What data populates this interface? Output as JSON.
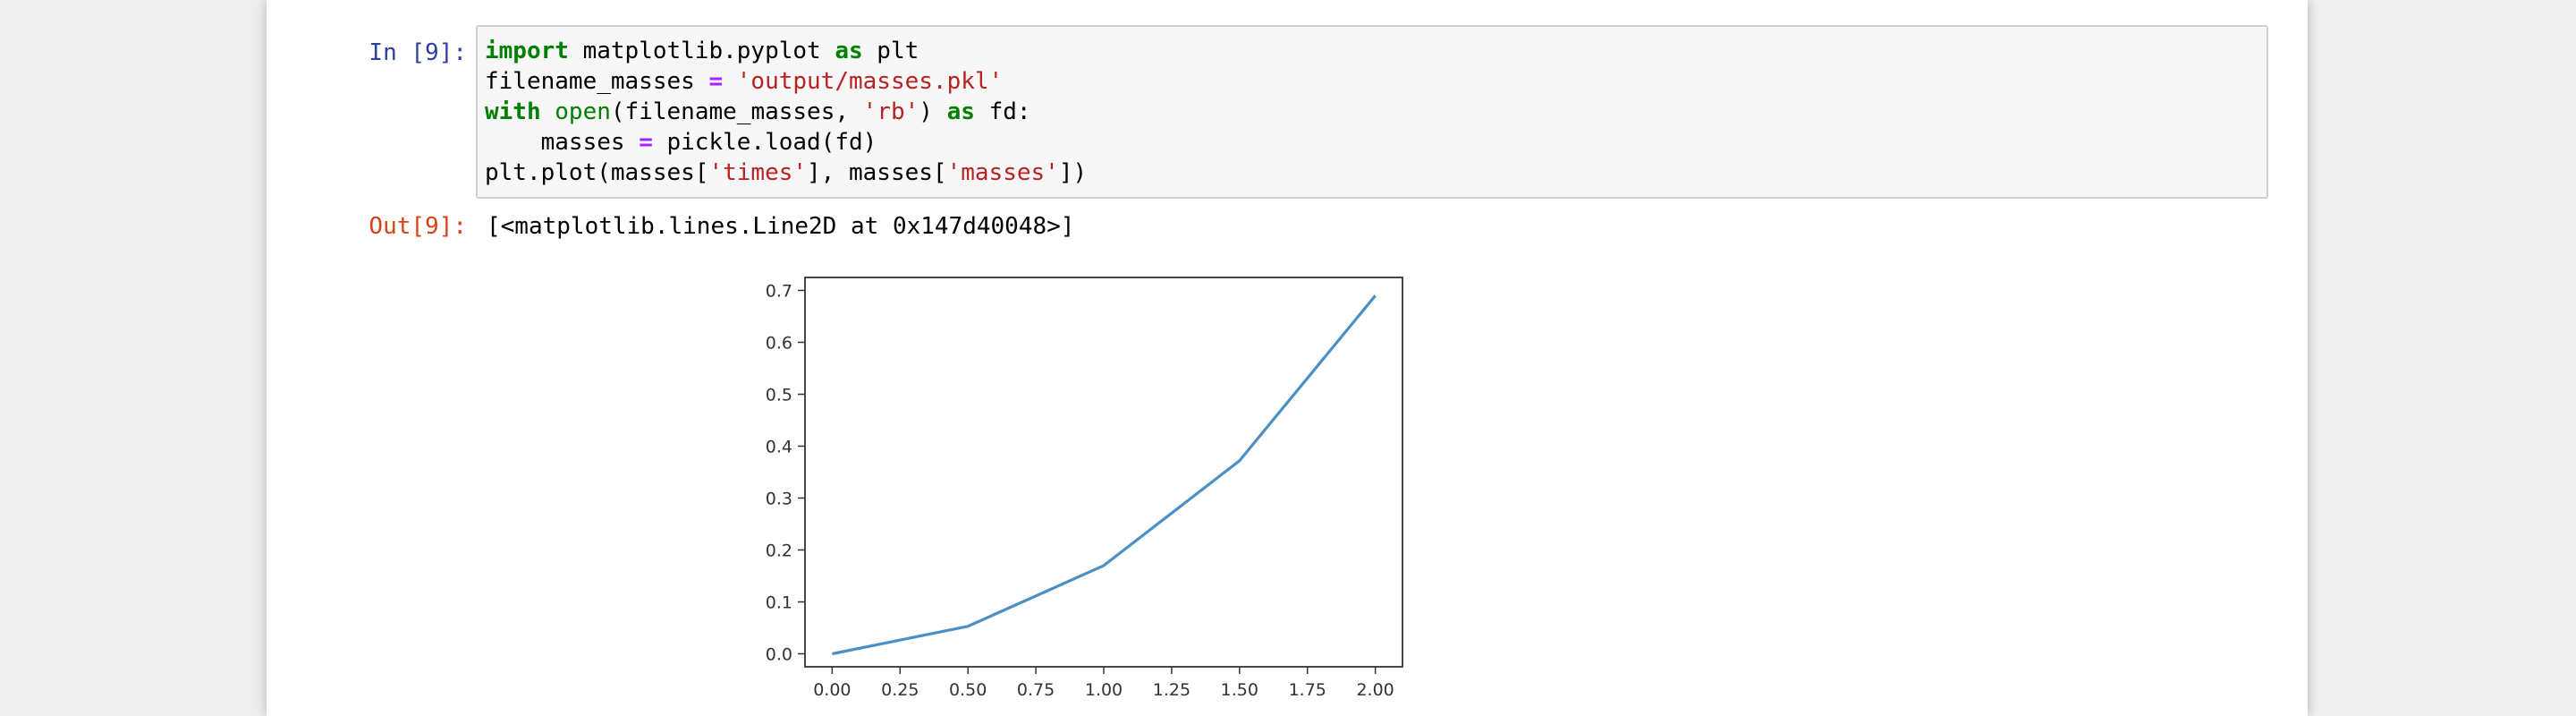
{
  "cell": {
    "in_prompt": "In [9]:",
    "out_prompt": "Out[9]:",
    "code": {
      "line1": {
        "kw_import": "import",
        "module": " matplotlib.pyplot ",
        "kw_as": "as",
        "alias": " plt"
      },
      "line2": {
        "var": "filename_masses ",
        "op": "=",
        "space": " ",
        "str": "'output/masses.pkl'"
      },
      "line3": {
        "kw_with": "with",
        "space1": " ",
        "builtin_open": "open",
        "args_a": "(filename_masses, ",
        "str_rb": "'rb'",
        "args_b": ") ",
        "kw_as": "as",
        "tail": " fd:"
      },
      "line4": {
        "indent": "    masses ",
        "op": "=",
        "tail": " pickle.load(fd)"
      },
      "line5": {
        "a": "plt.plot(masses[",
        "str_times": "'times'",
        "b": "], masses[",
        "str_masses": "'masses'",
        "c": "])"
      }
    },
    "output_text": "[<matplotlib.lines.Line2D at 0x147d40048>]"
  },
  "chart_data": {
    "type": "line",
    "x": [
      0.0,
      0.5,
      1.0,
      1.5,
      2.0
    ],
    "series": [
      {
        "values": [
          0.0,
          0.053,
          0.17,
          0.372,
          0.69
        ],
        "color": "#4a90c4"
      }
    ],
    "xlim": [
      -0.1,
      2.1
    ],
    "ylim": [
      -0.025,
      0.725
    ],
    "xticks": [
      0.0,
      0.25,
      0.5,
      0.75,
      1.0,
      1.25,
      1.5,
      1.75,
      2.0
    ],
    "xtick_labels": [
      "0.00",
      "0.25",
      "0.50",
      "0.75",
      "1.00",
      "1.25",
      "1.50",
      "1.75",
      "2.00"
    ],
    "yticks": [
      0.0,
      0.1,
      0.2,
      0.3,
      0.4,
      0.5,
      0.6,
      0.7
    ],
    "ytick_labels": [
      "0.0",
      "0.1",
      "0.2",
      "0.3",
      "0.4",
      "0.5",
      "0.6",
      "0.7"
    ],
    "title": "",
    "xlabel": "",
    "ylabel": "",
    "grid": false
  }
}
